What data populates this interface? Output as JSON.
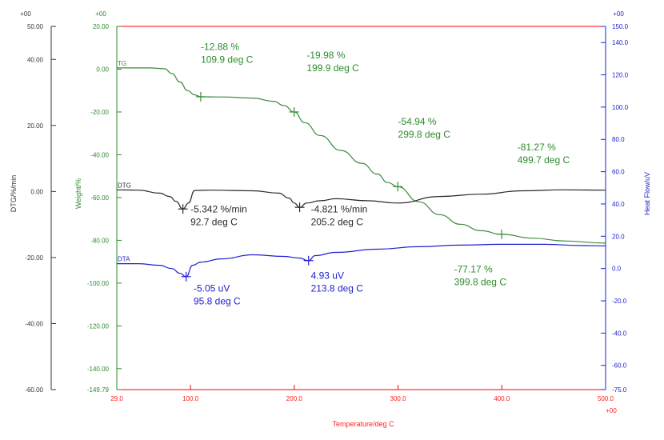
{
  "chart_data": {
    "type": "line",
    "title": "",
    "xlabel": "Temperature/deg C",
    "x_ticks": [
      "29.0",
      "100.0",
      "200.0",
      "300.0",
      "400.0",
      "500.0"
    ],
    "x_range": [
      29.0,
      500.0
    ],
    "x_exponent": "+00",
    "axes": {
      "dtg": {
        "label": "DTG/%/min",
        "exponent": "+00",
        "range": [
          -60.0,
          50.0
        ],
        "ticks": [
          "50.00",
          "40.00",
          "20.00",
          "0.00",
          "-20.00",
          "-40.00",
          "-60.00"
        ],
        "tick_values": [
          50,
          40,
          20,
          0,
          -20,
          -40,
          -60
        ],
        "color": "#2e3a2e"
      },
      "weight": {
        "label": "Weight/%",
        "exponent": "+00",
        "range": [
          -149.79,
          20.0
        ],
        "ticks": [
          "20.00",
          "0.00",
          "-20.00",
          "-40.00",
          "-60.00",
          "-80.00",
          "-100.00",
          "-120.00",
          "-140.00",
          "-149.79"
        ],
        "tick_values": [
          20,
          0,
          -20,
          -40,
          -60,
          -80,
          -100,
          -120,
          -140,
          -149.79
        ],
        "color": "#2e8b2e"
      },
      "heat": {
        "label": "Heat Flow/uV",
        "exponent": "+00",
        "range": [
          -75.0,
          150.0
        ],
        "ticks": [
          "150.0",
          "140.0",
          "120.0",
          "100.0",
          "80.0",
          "60.0",
          "40.0",
          "20.0",
          "0.0",
          "-20.0",
          "-40.0",
          "-60.0",
          "-75.0"
        ],
        "tick_values": [
          150,
          140,
          120,
          100,
          80,
          60,
          40,
          20,
          0,
          -20,
          -40,
          -60,
          -75
        ],
        "color": "#2020d0"
      }
    },
    "series": [
      {
        "name": "TG",
        "axis": "weight",
        "color": "#3a8a3a",
        "x": [
          29,
          60,
          75,
          82,
          90,
          97,
          104,
          110,
          130,
          160,
          180,
          190,
          200,
          210,
          225,
          245,
          265,
          280,
          290,
          300,
          320,
          340,
          360,
          380,
          400,
          430,
          460,
          500
        ],
        "y": [
          0.6,
          0.6,
          0.2,
          -2,
          -6,
          -10,
          -12,
          -12.9,
          -13.0,
          -13.5,
          -15,
          -17,
          -20,
          -25,
          -31,
          -38,
          -44,
          -49,
          -53,
          -55,
          -62,
          -68,
          -72.5,
          -75.5,
          -77.2,
          -79,
          -80.3,
          -81.3
        ]
      },
      {
        "name": "DTG",
        "axis": "dtg",
        "color": "#2a2a2a",
        "x": [
          29,
          50,
          70,
          80,
          86,
          92.7,
          98,
          104,
          120,
          160,
          185,
          195,
          200,
          205.2,
          212,
          225,
          240,
          270,
          300,
          340,
          380,
          420,
          460,
          500
        ],
        "y": [
          0.5,
          0.4,
          -0.5,
          -1.5,
          -3,
          -5.3,
          -3.5,
          0.3,
          0.4,
          0.2,
          -0.5,
          -2,
          -3.5,
          -4.8,
          -3.5,
          -2.8,
          -2.2,
          -2.8,
          -3.5,
          -1.5,
          -0.8,
          0.2,
          0.5,
          0.4
        ]
      },
      {
        "name": "DTA",
        "axis": "heat",
        "color": "#2020d0",
        "x": [
          29,
          50,
          70,
          82,
          90,
          95.8,
          102,
          110,
          130,
          160,
          190,
          205,
          213.8,
          220,
          240,
          280,
          320,
          360,
          400,
          440,
          480,
          500
        ],
        "y": [
          3,
          3,
          2,
          0,
          -3,
          -5.05,
          2,
          4,
          6,
          8.5,
          7.5,
          6.5,
          4.9,
          8,
          10,
          12,
          13.5,
          14.5,
          15,
          15,
          14.2,
          14
        ]
      }
    ],
    "curve_labels": [
      {
        "text": "TG",
        "series": "TG"
      },
      {
        "text": "DTG",
        "series": "DTG"
      },
      {
        "text": "DTA",
        "series": "DTA"
      }
    ],
    "markers": [
      {
        "axis": "weight",
        "x": 109.9,
        "y": -12.9
      },
      {
        "axis": "weight",
        "x": 199.9,
        "y": -20.0
      },
      {
        "axis": "weight",
        "x": 299.8,
        "y": -54.9
      },
      {
        "axis": "weight",
        "x": 399.8,
        "y": -77.2
      },
      {
        "axis": "dtg",
        "x": 92.7,
        "y": -5.3
      },
      {
        "axis": "dtg",
        "x": 205.2,
        "y": -4.8
      },
      {
        "axis": "heat",
        "x": 95.8,
        "y": -5.05
      },
      {
        "axis": "heat",
        "x": 213.8,
        "y": 4.9
      }
    ],
    "annotations": [
      {
        "lines": [
          "-12.88 %",
          "109.9 deg C"
        ],
        "color": "#2e8b2e",
        "axis": "weight",
        "x": 110,
        "y": 9
      },
      {
        "lines": [
          "-19.98 %",
          "199.9 deg C"
        ],
        "color": "#2e8b2e",
        "axis": "weight",
        "x": 212,
        "y": 5
      },
      {
        "lines": [
          "-54.94 %",
          "299.8 deg C"
        ],
        "color": "#2e8b2e",
        "axis": "weight",
        "x": 300,
        "y": -26
      },
      {
        "lines": [
          "-81.27 %",
          "499.7 deg C"
        ],
        "color": "#2e8b2e",
        "axis": "weight",
        "x": 415,
        "y": -38
      },
      {
        "lines": [
          "-5.342 %/min",
          "92.7 deg C"
        ],
        "color": "#2a2a2a",
        "axis": "weight",
        "x": 100,
        "y": -67
      },
      {
        "lines": [
          "-4.821 %/min",
          "205.2 deg C"
        ],
        "color": "#2a2a2a",
        "axis": "weight",
        "x": 216,
        "y": -67
      },
      {
        "lines": [
          "-77.17 %",
          "399.8 deg C"
        ],
        "color": "#2e8b2e",
        "axis": "weight",
        "x": 354,
        "y": -95
      },
      {
        "lines": [
          "-5.05 uV",
          "95.8 deg C"
        ],
        "color": "#2020d0",
        "axis": "weight",
        "x": 103,
        "y": -104
      },
      {
        "lines": [
          "4.93 uV",
          "213.8 deg C"
        ],
        "color": "#2020d0",
        "axis": "weight",
        "x": 216,
        "y": -98
      }
    ],
    "frame_color": "#ff0000"
  }
}
